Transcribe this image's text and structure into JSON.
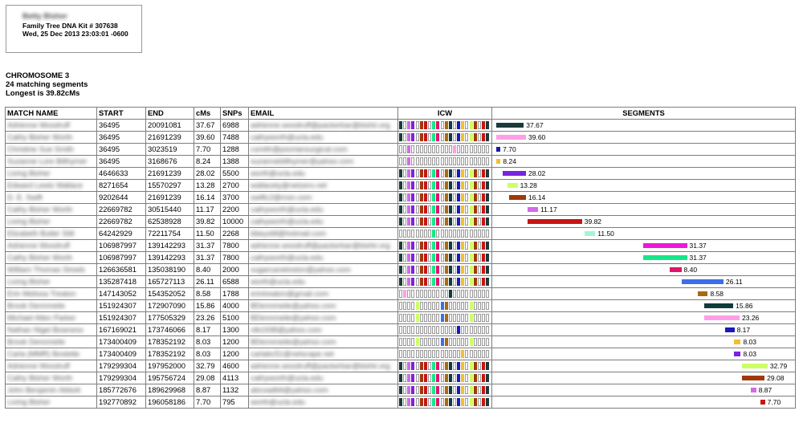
{
  "header": {
    "name": "Betty Bisher",
    "kit": "Family Tree DNA Kit # 307638",
    "date": "Wed, 25 Dec 2013 23:03:01 -0600"
  },
  "chromosome": {
    "title": "CHROMOSOME 3",
    "matching": "24 matching segments",
    "longest": "Longest is 39.82cMs"
  },
  "columns": {
    "name": "MATCH NAME",
    "start": "START",
    "end": "END",
    "cms": "cMs",
    "snps": "SNPs",
    "email": "EMAIL",
    "icw": "ICW",
    "segments": "SEGMENTS"
  },
  "segment_range": {
    "min": 0,
    "max": 198000000
  },
  "rows": [
    {
      "name": "Adrienne Woodruff",
      "start": "36495",
      "end": "20091081",
      "cms": "37.67",
      "snps": "6988",
      "email": "adrienne.woodruff@packerbar@bishir.org",
      "color": "#1d3a3a",
      "icw": [
        0,
        1,
        2,
        3,
        4,
        5,
        6,
        7,
        8,
        9,
        10,
        11,
        12,
        13,
        14,
        15,
        16,
        17,
        18,
        19,
        20,
        21
      ]
    },
    {
      "name": "Cathy Bisher Worth",
      "start": "36495",
      "end": "21691239",
      "cms": "39.60",
      "snps": "7488",
      "email": "cathyworth@ucla.edu",
      "color": "#ff9ee6",
      "icw": [
        0,
        1,
        2,
        3,
        4,
        5,
        6,
        7,
        8,
        9,
        10,
        11,
        12,
        13,
        14,
        15,
        16,
        17,
        18,
        19,
        20,
        21
      ]
    },
    {
      "name": "Christine Sue Smith",
      "start": "36495",
      "end": "3023519",
      "cms": "7.70",
      "snps": "1288",
      "email": "csmith@pooriansurgical.com",
      "color": "#1a1aa8",
      "icw": [
        2,
        13
      ]
    },
    {
      "name": "Suzanne Lore Billhymer",
      "start": "36495",
      "end": "3168676",
      "cms": "8.24",
      "snps": "1388",
      "email": "suzannebillhymer@yahoo.com",
      "color": "#f0c030",
      "icw": [
        2
      ]
    },
    {
      "name": "Living Bisher",
      "start": "4646633",
      "end": "21691239",
      "cms": "28.02",
      "snps": "5500",
      "email": "worth@ucla.edu",
      "color": "#7a22e0",
      "icw": [
        0,
        1,
        2,
        3,
        4,
        5,
        6,
        7,
        8,
        9,
        10,
        11,
        12,
        13,
        14,
        15,
        16,
        17,
        18,
        19,
        20,
        21
      ]
    },
    {
      "name": "Edward Lewis Wallace",
      "start": "8271654",
      "end": "15570297",
      "cms": "13.28",
      "snps": "2700",
      "email": "wallacety@netzero.net",
      "color": "#ccff66",
      "icw": [
        0,
        1,
        2,
        3,
        4,
        5,
        6,
        7,
        8,
        9,
        10,
        11,
        12,
        13,
        14,
        15,
        16,
        17,
        18,
        19,
        20,
        21
      ]
    },
    {
      "name": "D. E. Swift",
      "start": "9202644",
      "end": "21691239",
      "cms": "16.14",
      "snps": "3700",
      "email": "swiftc2@msn.com",
      "color": "#a0380c",
      "icw": [
        0,
        1,
        2,
        3,
        4,
        5,
        6,
        7,
        8,
        9,
        10,
        11,
        12,
        13,
        14,
        15,
        16,
        17,
        18,
        19,
        20,
        21
      ]
    },
    {
      "name": "Cathy Bisher Worth",
      "start": "22669782",
      "end": "30515440",
      "cms": "11.17",
      "snps": "2200",
      "email": "cathyworth@ucla.edu",
      "color": "#d46ae6",
      "icw": [
        0,
        1,
        2,
        3,
        4,
        5,
        6,
        7,
        8,
        9,
        10,
        11,
        12,
        13,
        14,
        15,
        16,
        17,
        18,
        19,
        20,
        21
      ]
    },
    {
      "name": "Living Bisher",
      "start": "22669782",
      "end": "62538928",
      "cms": "39.82",
      "snps": "10000",
      "email": "cathyworth@ucla.edu",
      "color": "#c81414",
      "icw": [
        0,
        1,
        2,
        3,
        4,
        5,
        6,
        7,
        8,
        9,
        10,
        11,
        12,
        13,
        14,
        15,
        16,
        17,
        18,
        19,
        20,
        21
      ]
    },
    {
      "name": "Elizabeth Butler Still",
      "start": "64242929",
      "end": "72211754",
      "cms": "11.50",
      "snps": "2268",
      "email": "bbeystill@hotmail.com",
      "color": "#a6f5d2",
      "icw": [
        8
      ]
    },
    {
      "name": "Adrienne Woodruff",
      "start": "106987997",
      "end": "139142293",
      "cms": "31.37",
      "snps": "7800",
      "email": "adrienne.woodruff@packerbar@bishir.org",
      "color": "#ee18d8",
      "icw": [
        0,
        1,
        2,
        3,
        4,
        5,
        6,
        7,
        8,
        9,
        10,
        11,
        12,
        13,
        14,
        15,
        16,
        17,
        18,
        19,
        20,
        21
      ]
    },
    {
      "name": "Cathy Bisher Worth",
      "start": "106987997",
      "end": "139142293",
      "cms": "31.37",
      "snps": "7800",
      "email": "cathyworth@ucla.edu",
      "color": "#16e68a",
      "icw": [
        0,
        1,
        2,
        3,
        4,
        5,
        6,
        7,
        8,
        9,
        10,
        11,
        12,
        13,
        14,
        15,
        16,
        17,
        18,
        19,
        20,
        21
      ]
    },
    {
      "name": "William Thomas Streeb",
      "start": "126636581",
      "end": "135038190",
      "cms": "8.40",
      "snps": "2000",
      "email": "sugarcanetoston@yahoo.com",
      "color": "#e01468",
      "icw": [
        0,
        1,
        2,
        3,
        4,
        5,
        6,
        7,
        8,
        9,
        10,
        11,
        12,
        13,
        14,
        15,
        16,
        17,
        18,
        19,
        20,
        21
      ]
    },
    {
      "name": "Living Bisher",
      "start": "135287418",
      "end": "165727113",
      "cms": "26.11",
      "snps": "6588",
      "email": "worth@ucla.edu",
      "color": "#3b6ee8",
      "icw": [
        0,
        1,
        2,
        3,
        4,
        5,
        6,
        7,
        8,
        9,
        10,
        11,
        12,
        13,
        14,
        15,
        16,
        17,
        18,
        19,
        20,
        21
      ]
    },
    {
      "name": "Erin Melissa Treaton",
      "start": "147143052",
      "end": "154352052",
      "cms": "8.58",
      "snps": "1788",
      "email": "erintreaton@gmail.com",
      "color": "#a86a10",
      "icw": [
        1,
        12
      ]
    },
    {
      "name": "Brook Dennmeile",
      "start": "151924307",
      "end": "172907090",
      "cms": "15.86",
      "snps": "4000",
      "email": "BDennmeile@yahoo.com",
      "color": "#0f3b3b",
      "icw": [
        4,
        10,
        11,
        17
      ]
    },
    {
      "name": "Michael Allen Parker",
      "start": "151924307",
      "end": "177505329",
      "cms": "23.26",
      "snps": "5100",
      "email": "BDennmeile@yahoo.com",
      "color": "#ff9ee6",
      "icw": [
        4,
        10,
        11,
        17
      ]
    },
    {
      "name": "Nathan Nigel Bowness",
      "start": "167169021",
      "end": "173746066",
      "cms": "8.17",
      "snps": "1300",
      "email": "nlb1938@yahoo.com",
      "color": "#1a1ab8",
      "icw": [
        14
      ]
    },
    {
      "name": "Brook Dennmeile",
      "start": "173400409",
      "end": "178352192",
      "cms": "8.03",
      "snps": "1200",
      "email": "BDennmeile@yahoo.com",
      "color": "#f0c030",
      "icw": [
        4,
        10,
        11,
        17
      ]
    },
    {
      "name": "Carla (MMR) Boslette",
      "start": "173400409",
      "end": "178352192",
      "cms": "8.03",
      "snps": "1200",
      "email": "carlabc51@netscape.net",
      "color": "#7a22e0",
      "icw": [
        15
      ]
    },
    {
      "name": "Adrienne Woodruff",
      "start": "179299304",
      "end": "197952000",
      "cms": "32.79",
      "snps": "4600",
      "email": "adrienne.woodruff@packerbar@bishir.org",
      "color": "#ccff66",
      "icw": [
        0,
        1,
        2,
        3,
        4,
        5,
        6,
        7,
        8,
        9,
        10,
        11,
        12,
        13,
        14,
        15,
        16,
        17,
        18,
        19,
        20,
        21
      ]
    },
    {
      "name": "Cathy Bisher Worth",
      "start": "179299304",
      "end": "195756724",
      "cms": "29.08",
      "snps": "4113",
      "email": "cathyworth@ucla.edu",
      "color": "#a0380c",
      "icw": [
        0,
        1,
        2,
        3,
        4,
        5,
        6,
        7,
        8,
        9,
        10,
        11,
        12,
        13,
        14,
        15,
        16,
        17,
        18,
        19,
        20,
        21
      ]
    },
    {
      "name": "John Benjamin Abbott",
      "start": "185772676",
      "end": "189629968",
      "cms": "8.87",
      "snps": "1132",
      "email": "abcoadbtt@yahoo.com",
      "color": "#d46ae6",
      "icw": [
        0,
        1,
        2,
        3,
        4,
        5,
        6,
        7,
        8,
        9,
        10,
        11,
        12,
        13,
        14,
        15,
        16,
        17,
        18,
        19,
        20,
        21
      ]
    },
    {
      "name": "Living Bisher",
      "start": "192770892",
      "end": "196058186",
      "cms": "7.70",
      "snps": "795",
      "email": "worth@ucla.edu",
      "color": "#c81414",
      "icw": [
        0,
        1,
        2,
        3,
        4,
        5,
        6,
        7,
        8,
        9,
        10,
        11,
        12,
        13,
        14,
        15,
        16,
        17,
        18,
        19,
        20,
        21
      ]
    }
  ],
  "icw_palette": [
    "#1d3a3a",
    "#ff9ee6",
    "#d46ae6",
    "#7a22e0",
    "#ccff66",
    "#a0380c",
    "#c81414",
    "#ee18d8",
    "#16e68a",
    "#e01468",
    "#3b6ee8",
    "#a86a10",
    "#0f3b3b",
    "#ff9ee6",
    "#1a1ab8",
    "#f0c030",
    "#7a22e0",
    "#ccff66",
    "#a0380c",
    "#d46ae6",
    "#c81414",
    "#1d3a3a"
  ]
}
